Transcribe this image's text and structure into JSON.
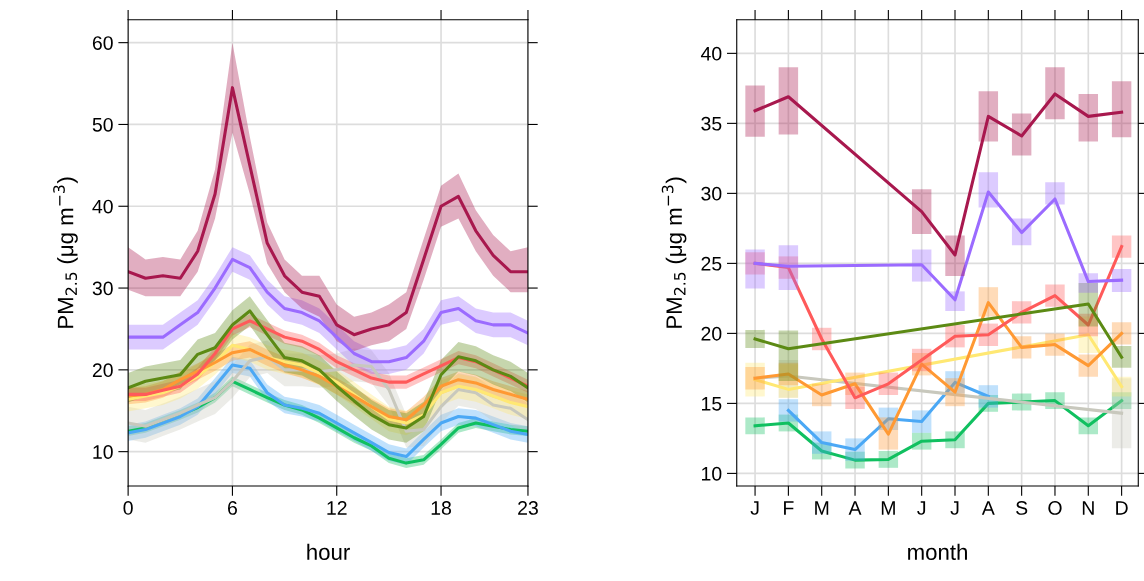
{
  "chart_data": [
    {
      "type": "line",
      "xlabel": "hour",
      "ylabel": "PM$_{2.5}$ (μg m$^{−3}$)",
      "x": [
        0,
        1,
        2,
        3,
        4,
        5,
        6,
        7,
        8,
        9,
        10,
        11,
        12,
        13,
        14,
        15,
        16,
        17,
        18,
        19,
        20,
        21,
        22,
        23
      ],
      "xlim": [
        0,
        23
      ],
      "xticks": [
        0,
        6,
        12,
        18,
        23
      ],
      "ylim": [
        5.8,
        62.8
      ],
      "yticks": [
        10,
        20,
        30,
        40,
        50,
        60
      ],
      "grid": true,
      "series": [
        {
          "color": "#10c060",
          "values": [
            12.5,
            12.9,
            13.7,
            14.5,
            15.4,
            16.6,
            18.6,
            17.6,
            16.6,
            15.7,
            15.1,
            14.1,
            12.9,
            11.7,
            10.7,
            9.2,
            8.6,
            9,
            10.9,
            12.9,
            13.5,
            13.1,
            12.7,
            12.5
          ],
          "lower": [
            11.9,
            12.3,
            13.1,
            13.9,
            14.8,
            16,
            18,
            17,
            16,
            15.1,
            14.5,
            13.5,
            12.3,
            11.1,
            10.1,
            8.6,
            8,
            8.4,
            10.3,
            12.3,
            12.9,
            12.5,
            12.1,
            11.9
          ],
          "upper": [
            13.1,
            13.5,
            14.3,
            15.1,
            16,
            17.2,
            19.2,
            18.2,
            17.2,
            16.3,
            15.7,
            14.7,
            13.5,
            12.3,
            11.3,
            9.8,
            9.2,
            9.6,
            11.5,
            13.5,
            14.1,
            13.7,
            13.3,
            13.1
          ]
        },
        {
          "color": "#4ba8f5",
          "values": [
            12.3,
            12.7,
            13.5,
            14.3,
            15.5,
            18,
            20.6,
            20.2,
            17.2,
            15.7,
            15.3,
            14.7,
            13.5,
            12.3,
            11.1,
            9.9,
            9.4,
            11.5,
            13.5,
            14.3,
            14.1,
            13.3,
            12.5,
            12.1
          ],
          "lower": [
            11.3,
            11.7,
            12.5,
            13.3,
            14.5,
            17,
            19.6,
            19.2,
            16.2,
            14.7,
            14.3,
            13.7,
            12.5,
            11.3,
            10.1,
            8.9,
            8.4,
            10.5,
            12.5,
            13.3,
            13.1,
            12.3,
            11.5,
            11.1
          ],
          "upper": [
            13.3,
            13.7,
            14.5,
            15.3,
            16.5,
            19,
            21.6,
            21.2,
            18.2,
            16.7,
            16.3,
            15.7,
            14.5,
            13.3,
            12.1,
            10.9,
            10.4,
            12.5,
            14.5,
            15.3,
            15.1,
            14.3,
            13.5,
            13.1
          ]
        },
        {
          "color": "#c8c8bd",
          "values": [
            13.5,
            13.1,
            13.9,
            14.7,
            15.7,
            16.6,
            18.6,
            21.1,
            21.6,
            20,
            20,
            19.8,
            20,
            20.6,
            20.4,
            17.6,
            12.5,
            12.7,
            15.5,
            17.6,
            17.2,
            15.7,
            15.3,
            13.9
          ],
          "lower": [
            11.5,
            11.1,
            11.9,
            12.7,
            13.7,
            14.6,
            16.6,
            19.1,
            19.6,
            18,
            18,
            17.8,
            18,
            18.6,
            18.4,
            15.6,
            10.5,
            10.7,
            13.5,
            15.6,
            15.2,
            13.7,
            13.3,
            11.9
          ],
          "upper": [
            15.5,
            15.1,
            15.9,
            16.7,
            17.7,
            18.6,
            20.6,
            23.1,
            23.6,
            22,
            22,
            21.8,
            22,
            22.6,
            22.4,
            19.6,
            14.5,
            14.7,
            17.5,
            19.6,
            19.2,
            17.7,
            17.3,
            15.9
          ]
        },
        {
          "color": "#ffe873",
          "values": [
            16.4,
            16.8,
            17.2,
            18,
            19.2,
            20.9,
            23,
            22.5,
            21.5,
            21,
            20.6,
            19.6,
            18.5,
            17,
            15.5,
            14,
            13.5,
            14.5,
            17.2,
            18,
            17.6,
            16.8,
            16,
            15.5
          ],
          "lower": [
            14.9,
            15.3,
            15.7,
            16.5,
            17.7,
            19.4,
            21.5,
            21,
            20,
            19.5,
            19.1,
            18.1,
            17,
            15.5,
            14,
            12.5,
            12,
            13,
            15.7,
            16.5,
            16.1,
            15.3,
            14.5,
            14
          ],
          "upper": [
            17.9,
            18.3,
            18.7,
            19.5,
            20.7,
            22.4,
            24.5,
            24,
            23,
            22.5,
            22.1,
            21.1,
            20,
            18.5,
            17,
            15.5,
            15,
            16,
            18.7,
            19.5,
            19.1,
            18.3,
            17.5,
            17
          ]
        },
        {
          "color": "#ff9933",
          "values": [
            16.8,
            17,
            17.6,
            18.8,
            19.8,
            20.9,
            22.1,
            22.5,
            21.5,
            20.6,
            20,
            19.2,
            18,
            16.8,
            15.5,
            14.3,
            13.9,
            15.7,
            18,
            18.8,
            18.4,
            17.6,
            17,
            16.4
          ],
          "lower": [
            15.8,
            16,
            16.6,
            17.8,
            18.8,
            19.9,
            21.1,
            21.5,
            20.5,
            19.6,
            19,
            18.2,
            17,
            15.8,
            14.5,
            13.3,
            12.9,
            14.7,
            17,
            17.8,
            17.4,
            16.6,
            16,
            15.4
          ],
          "upper": [
            17.8,
            18,
            18.6,
            19.8,
            20.8,
            21.9,
            23.1,
            23.5,
            22.5,
            21.6,
            21,
            20.2,
            19,
            17.8,
            16.5,
            15.3,
            14.9,
            16.7,
            19,
            19.8,
            19.4,
            18.6,
            18,
            17.4
          ]
        },
        {
          "color": "#ff5a5a",
          "values": [
            17,
            17,
            17.5,
            18,
            19.5,
            22,
            25,
            26,
            25,
            24,
            23.5,
            22.5,
            21,
            20,
            19,
            18.5,
            18.5,
            19.5,
            20.5,
            21.5,
            21,
            20,
            19,
            18
          ],
          "lower": [
            16.2,
            16.2,
            16.7,
            17.2,
            18.7,
            21.2,
            24.2,
            25.2,
            24.2,
            23.2,
            22.7,
            21.7,
            20.2,
            19.2,
            18.2,
            17.7,
            17.7,
            18.7,
            19.7,
            20.7,
            20.2,
            19.2,
            18.2,
            17.2
          ],
          "upper": [
            17.8,
            17.8,
            18.3,
            18.8,
            20.3,
            22.8,
            25.8,
            26.8,
            25.8,
            24.8,
            24.3,
            23.3,
            21.8,
            20.8,
            19.8,
            19.3,
            19.3,
            20.3,
            21.3,
            22.3,
            21.8,
            20.8,
            19.8,
            18.8
          ]
        },
        {
          "color": "#5c8a14",
          "values": [
            17.8,
            18.6,
            19,
            19.4,
            21.9,
            22.7,
            25.5,
            27.2,
            24.3,
            21.5,
            21.1,
            20,
            18,
            16.2,
            14.5,
            13.3,
            12.9,
            14.3,
            19.4,
            21.6,
            21.1,
            20,
            19.2,
            17.8
          ],
          "lower": [
            16,
            16.8,
            17.2,
            17.6,
            20.1,
            20.9,
            23.7,
            25.4,
            22.5,
            19.7,
            19.3,
            18.2,
            16.2,
            14.4,
            12.7,
            11.5,
            11.1,
            12.5,
            17.6,
            19.8,
            19.3,
            18.2,
            17.4,
            16
          ],
          "upper": [
            19.6,
            20.4,
            20.8,
            21.2,
            23.7,
            24.5,
            27.3,
            29,
            26.1,
            23.3,
            22.9,
            21.8,
            19.8,
            18,
            16.3,
            15.1,
            14.7,
            16.1,
            21.2,
            23.4,
            22.9,
            21.8,
            21,
            19.6
          ]
        },
        {
          "color": "#9b6bff",
          "values": [
            24,
            24,
            24,
            25.5,
            27,
            30,
            33.5,
            32.5,
            29.5,
            27.5,
            27,
            26,
            24,
            22,
            21,
            21,
            21.5,
            23.5,
            27,
            27.5,
            26,
            25.5,
            25.5,
            24.5
          ],
          "lower": [
            22.5,
            22.5,
            22.5,
            24,
            25.5,
            28.5,
            32,
            31,
            28,
            26,
            25.5,
            24.5,
            22.5,
            20.5,
            19.5,
            19.5,
            20,
            22,
            25.5,
            26,
            24.5,
            24,
            24,
            23
          ],
          "upper": [
            25.5,
            25.5,
            25.5,
            27,
            28.5,
            31.5,
            35,
            34,
            31,
            29,
            28.5,
            27.5,
            25.5,
            23.5,
            22.5,
            22.5,
            23,
            25,
            28.5,
            29,
            27.5,
            27,
            27,
            26
          ]
        },
        {
          "color": "#a8184e",
          "values": [
            32,
            31.2,
            31.5,
            31.2,
            34.5,
            41.5,
            54.5,
            45,
            35.5,
            31.5,
            29.5,
            29,
            25.5,
            24.3,
            25,
            25.5,
            27,
            33.5,
            40,
            41.2,
            37,
            34,
            32,
            32
          ],
          "lower": [
            29.8,
            29,
            29,
            29,
            32,
            38.5,
            49,
            41.5,
            33,
            29.5,
            27.5,
            26.5,
            23.5,
            22.3,
            23,
            23.5,
            25,
            31,
            37.5,
            38.5,
            34.5,
            31.5,
            29.5,
            29.5
          ],
          "upper": [
            35,
            33.5,
            33.8,
            33.5,
            37,
            44.5,
            60,
            48.5,
            38,
            33.5,
            31.5,
            31.5,
            28,
            26.5,
            27,
            28,
            29.5,
            36,
            42.5,
            44,
            39.5,
            36.5,
            34.5,
            35
          ]
        }
      ]
    },
    {
      "type": "line",
      "xlabel": "month",
      "ylabel": "PM$_{2.5}$ (μg m$^{−3}$)",
      "categories": [
        "J",
        "F",
        "M",
        "A",
        "M",
        "J",
        "J",
        "A",
        "S",
        "O",
        "N",
        "D"
      ],
      "ylim": [
        9.1,
        42.4
      ],
      "yticks": [
        10,
        15,
        20,
        25,
        30,
        35,
        40
      ],
      "grid": true,
      "series": [
        {
          "color": "#10c060",
          "values": [
            13.4,
            13.6,
            11.6,
            10.95,
            11.0,
            12.3,
            12.4,
            15.0,
            15.1,
            15.2,
            13.4,
            15.2
          ],
          "errors": [
            0.6,
            0.6,
            0.6,
            0.6,
            0.6,
            0.6,
            0.6,
            0.6,
            0.6,
            0.6,
            0.6,
            0.6
          ]
        },
        {
          "color": "#4ba8f5",
          "values": [
            null,
            14.5,
            12.2,
            11.7,
            13.9,
            13.7,
            16.5,
            15.5,
            null,
            null,
            null,
            null
          ],
          "errors": [
            null,
            0.8,
            0.8,
            0.8,
            0.8,
            0.8,
            0.8,
            0.8,
            null,
            null,
            null,
            null
          ]
        },
        {
          "color": "#c8c8bd",
          "values": [
            16.8,
            16.95,
            null,
            null,
            null,
            null,
            null,
            null,
            null,
            null,
            null,
            14.3
          ],
          "errors": [
            null,
            [
              15.4,
              18.1
            ],
            null,
            null,
            null,
            null,
            null,
            null,
            null,
            null,
            null,
            [
              11.8,
              16.8
            ]
          ]
        },
        {
          "color": "#ffe873",
          "values": [
            16.7,
            16.0,
            null,
            null,
            null,
            null,
            null,
            null,
            null,
            null,
            19.9,
            16.2
          ],
          "errors": [
            1.2,
            [
              15.4,
              17.8
            ],
            null,
            null,
            null,
            null,
            null,
            null,
            null,
            null,
            [
              18.6,
              21.2
            ],
            [
              15.5,
              16.9
            ]
          ]
        },
        {
          "color": "#ff9933",
          "values": [
            16.8,
            17.1,
            15.6,
            16.4,
            12.8,
            17.8,
            15.8,
            22.2,
            19.0,
            19.2,
            17.7,
            20.0
          ],
          "errors": [
            0.8,
            0.8,
            0.8,
            0.8,
            [
              11.7,
              14.0
            ],
            0.8,
            1,
            [
              21.2,
              23.3
            ],
            0.8,
            0.8,
            0.8,
            0.8
          ]
        },
        {
          "color": "#ff5a5a",
          "values": [
            25.0,
            24.7,
            19.6,
            15.4,
            16.4,
            18.1,
            19.8,
            19.9,
            21.5,
            22.7,
            20.6,
            26.2
          ],
          "errors": [
            0.8,
            0.8,
            0.8,
            0.8,
            0.8,
            0.8,
            0.8,
            0.8,
            0.8,
            0.8,
            0.8,
            0.8
          ]
        },
        {
          "color": "#5c8a14",
          "values": [
            19.6,
            18.9,
            null,
            null,
            null,
            null,
            null,
            null,
            null,
            null,
            22.1,
            18.3
          ],
          "errors": [
            [
              18.95,
              20.25
            ],
            [
              16.6,
              20.2
            ],
            null,
            null,
            null,
            null,
            null,
            null,
            null,
            null,
            [
              20.5,
              23.6
            ],
            [
              17.55,
              19.1
            ]
          ]
        },
        {
          "color": "#9b6bff",
          "values": [
            25.0,
            24.8,
            null,
            null,
            null,
            24.9,
            22.4,
            30.1,
            27.2,
            29.6,
            23.7,
            23.8
          ],
          "errors": [
            [
              23.2,
              26.0
            ],
            [
              23.1,
              26.3
            ],
            null,
            null,
            null,
            [
              23.7,
              26.0
            ],
            [
              21.6,
              23.0
            ],
            [
              29.0,
              31.5
            ],
            [
              26.3,
              28.2
            ],
            [
              29.2,
              30.8
            ],
            [
              22.9,
              24.3
            ],
            [
              22.95,
              24.6
            ]
          ]
        },
        {
          "color": "#a8184e",
          "values": [
            35.9,
            36.9,
            null,
            null,
            null,
            28.7,
            25.6,
            35.5,
            34.1,
            37.1,
            35.5,
            35.8
          ],
          "errors": [
            [
              34.05,
              37.7
            ],
            [
              34.2,
              39.0
            ],
            null,
            null,
            null,
            [
              27.1,
              30.3
            ],
            [
              24.1,
              27.0
            ],
            [
              33.7,
              37.3
            ],
            [
              32.7,
              35.7
            ],
            [
              35.3,
              39.0
            ],
            [
              33.7,
              37.1
            ],
            [
              34.0,
              38.0
            ]
          ]
        }
      ]
    }
  ]
}
